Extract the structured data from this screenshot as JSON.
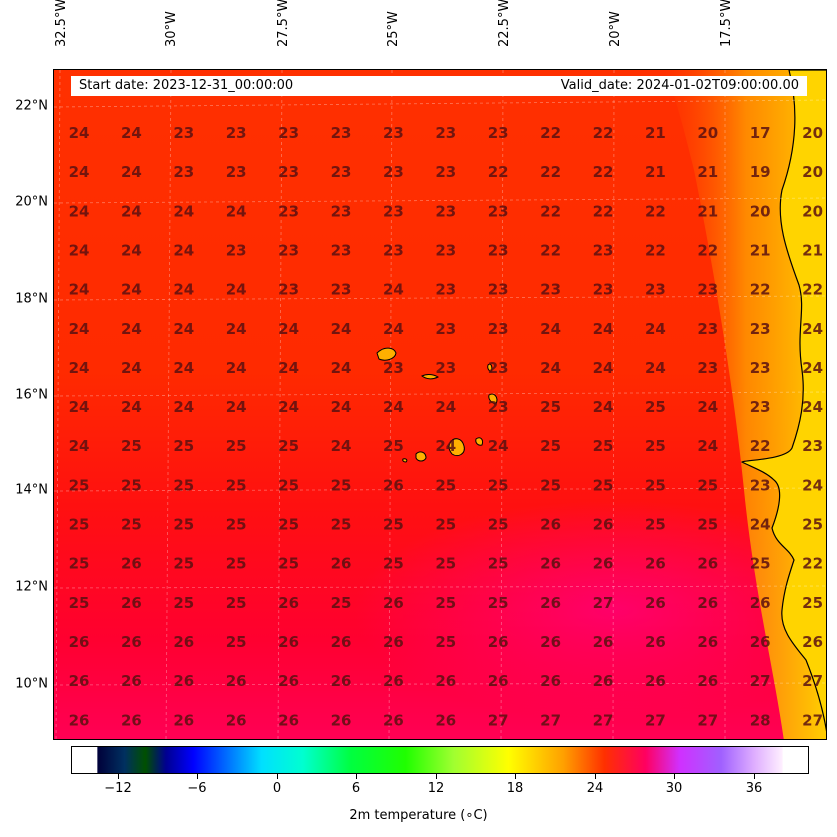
{
  "header": {
    "start_date": "Start date: 2023-12-31_00:00:00",
    "valid_date": "Valid_date: 2024-01-02T09:00:00.00"
  },
  "lon_labels": [
    "32.5°W",
    "30°W",
    "27.5°W",
    "25°W",
    "22.5°W",
    "20°W",
    "17.5°W"
  ],
  "lat_labels": [
    "22°N",
    "20°N",
    "18°N",
    "16°N",
    "14°N",
    "12°N",
    "10°N"
  ],
  "grid_values": [
    [
      "24",
      "24",
      "23",
      "23",
      "23",
      "23",
      "23",
      "23",
      "23",
      "22",
      "22",
      "21",
      "20",
      "17",
      "20"
    ],
    [
      "24",
      "24",
      "23",
      "23",
      "23",
      "23",
      "23",
      "23",
      "22",
      "22",
      "22",
      "21",
      "21",
      "19",
      "20"
    ],
    [
      "24",
      "24",
      "24",
      "24",
      "23",
      "23",
      "23",
      "23",
      "23",
      "22",
      "22",
      "22",
      "21",
      "20",
      "20"
    ],
    [
      "24",
      "24",
      "24",
      "23",
      "23",
      "23",
      "23",
      "23",
      "23",
      "22",
      "23",
      "22",
      "22",
      "21",
      "21"
    ],
    [
      "24",
      "24",
      "24",
      "24",
      "23",
      "23",
      "24",
      "23",
      "23",
      "23",
      "23",
      "23",
      "23",
      "22",
      "22"
    ],
    [
      "24",
      "24",
      "24",
      "24",
      "24",
      "24",
      "24",
      "23",
      "23",
      "24",
      "24",
      "24",
      "23",
      "23",
      "24"
    ],
    [
      "24",
      "24",
      "24",
      "24",
      "24",
      "24",
      "23",
      "23",
      "23",
      "24",
      "24",
      "24",
      "23",
      "23",
      "24"
    ],
    [
      "24",
      "24",
      "24",
      "24",
      "24",
      "24",
      "24",
      "24",
      "23",
      "25",
      "24",
      "25",
      "24",
      "23",
      "24"
    ],
    [
      "24",
      "25",
      "25",
      "25",
      "25",
      "24",
      "25",
      "24",
      "24",
      "25",
      "25",
      "25",
      "24",
      "22",
      "23"
    ],
    [
      "25",
      "25",
      "25",
      "25",
      "25",
      "25",
      "26",
      "25",
      "25",
      "25",
      "25",
      "25",
      "25",
      "23",
      "24"
    ],
    [
      "25",
      "25",
      "25",
      "25",
      "25",
      "25",
      "25",
      "25",
      "25",
      "26",
      "26",
      "25",
      "25",
      "24",
      "25"
    ],
    [
      "25",
      "26",
      "25",
      "25",
      "25",
      "26",
      "25",
      "25",
      "25",
      "26",
      "26",
      "26",
      "26",
      "25",
      "22"
    ],
    [
      "25",
      "26",
      "25",
      "25",
      "26",
      "25",
      "26",
      "25",
      "25",
      "26",
      "27",
      "26",
      "26",
      "26",
      "25"
    ],
    [
      "26",
      "26",
      "26",
      "25",
      "26",
      "26",
      "26",
      "25",
      "26",
      "26",
      "26",
      "26",
      "26",
      "26",
      "26"
    ],
    [
      "26",
      "26",
      "26",
      "26",
      "26",
      "26",
      "26",
      "26",
      "26",
      "26",
      "26",
      "26",
      "26",
      "27",
      "27"
    ],
    [
      "26",
      "26",
      "26",
      "26",
      "26",
      "26",
      "26",
      "26",
      "27",
      "27",
      "27",
      "27",
      "27",
      "28",
      "27"
    ]
  ],
  "colorbar": {
    "ticks": [
      "−12",
      "−6",
      "0",
      "6",
      "12",
      "18",
      "24",
      "30",
      "36"
    ],
    "label": "2m temperature (∘C)"
  }
}
